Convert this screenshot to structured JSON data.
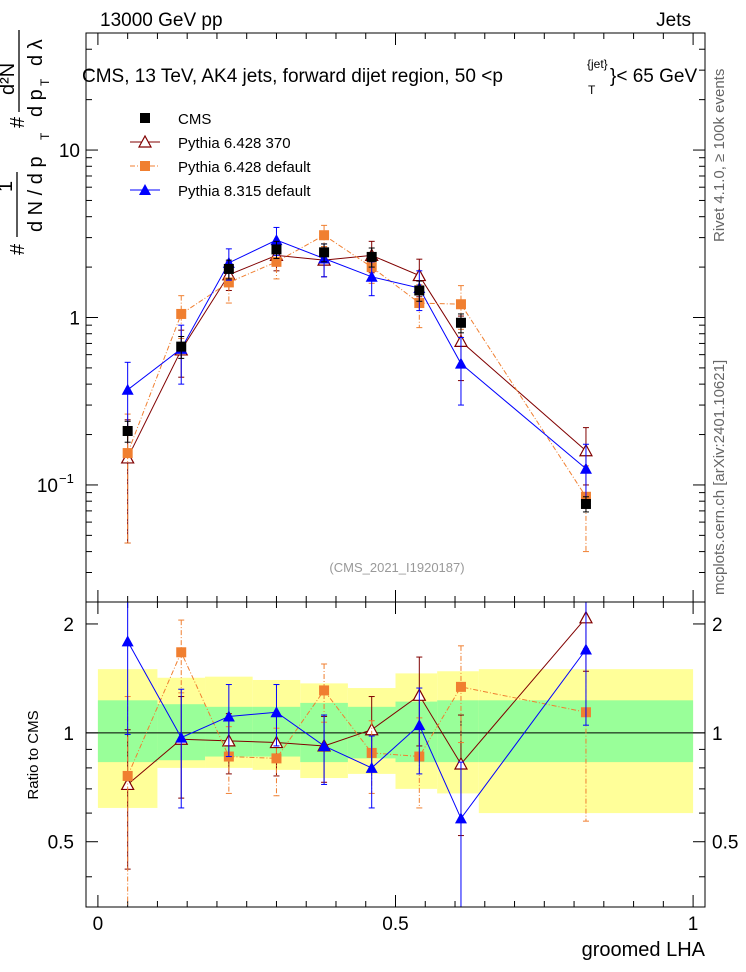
{
  "header": {
    "left_label": "13000 GeV pp",
    "right_label": "Jets"
  },
  "side_labels": {
    "rivet": "Rivet 4.1.0, ≥ 100k events",
    "source": "mcplots.cern.ch [arXiv:2401.10621]"
  },
  "chart_data": [
    {
      "type": "line",
      "panel": "main",
      "title": "CMS, 13 TeV, AK4 jets, forward dijet region, 50 <p",
      "title_sup": "{jet}",
      "title_sub": "T",
      "title_tail": "}< 65 GeV",
      "ylabel_parts": [
        "#",
        "1",
        "d N / d p",
        "T",
        "#",
        "d²N",
        "d p",
        "T",
        "d λ"
      ],
      "analysis_id": "(CMS_2021_I1920187)",
      "yscale": "log",
      "ylim": [
        0.02,
        50
      ],
      "xlim": [
        -0.02,
        1.02
      ],
      "y_ticks": [
        {
          "value": 0.1,
          "base": "10",
          "exp": "−1"
        },
        {
          "value": 1,
          "base": "1",
          "exp": ""
        },
        {
          "value": 10,
          "base": "10",
          "exp": ""
        }
      ],
      "x": [
        0.05,
        0.14,
        0.22,
        0.3,
        0.38,
        0.46,
        0.54,
        0.61,
        0.82
      ],
      "series": [
        {
          "name": "CMS",
          "color": "#000000",
          "marker": "square",
          "dash": "",
          "values": [
            0.21,
            0.67,
            1.95,
            2.55,
            2.45,
            2.3,
            1.45,
            0.93,
            0.077
          ],
          "err": [
            0.03,
            0.1,
            0.25,
            0.3,
            0.3,
            0.3,
            0.2,
            0.12,
            0.008
          ]
        },
        {
          "name": "Pythia 6.428 370",
          "color": "#800000",
          "marker": "triangle-open",
          "dash": "",
          "values": [
            0.145,
            0.64,
            1.8,
            2.35,
            2.2,
            2.35,
            1.78,
            0.72,
            0.16
          ],
          "err": [
            0.1,
            0.2,
            0.35,
            0.45,
            0.45,
            0.5,
            0.45,
            0.3,
            0.06
          ]
        },
        {
          "name": "Pythia 6.428 default",
          "color": "#f07f30",
          "marker": "square",
          "dash": "5,2,1,2",
          "values": [
            0.155,
            1.05,
            1.62,
            2.15,
            3.1,
            2.0,
            1.22,
            1.2,
            0.085
          ],
          "err": [
            0.11,
            0.3,
            0.4,
            0.45,
            0.45,
            0.4,
            0.35,
            0.35,
            0.045
          ]
        },
        {
          "name": "Pythia 8.315 default",
          "color": "#0000ff",
          "marker": "triangle",
          "dash": "",
          "values": [
            0.37,
            0.65,
            2.12,
            2.9,
            2.25,
            1.75,
            1.5,
            0.53,
            0.125
          ],
          "err": [
            0.17,
            0.25,
            0.45,
            0.55,
            0.5,
            0.4,
            0.4,
            0.23,
            0.05
          ]
        }
      ]
    },
    {
      "type": "line",
      "panel": "ratio",
      "ylabel": "Ratio to CMS",
      "xlabel": "groomed LHA",
      "ylim": [
        0.33,
        2.3
      ],
      "xlim": [
        -0.02,
        1.02
      ],
      "y_ticks": [
        0.5,
        1,
        2
      ],
      "x_ticks": [
        0,
        0.5,
        1
      ],
      "x": [
        0.05,
        0.14,
        0.22,
        0.3,
        0.38,
        0.46,
        0.54,
        0.61,
        0.82
      ],
      "bands": [
        {
          "x0": 0.0,
          "x1": 0.1,
          "inner": [
            0.83,
            1.23
          ],
          "outer": [
            0.62,
            1.5
          ]
        },
        {
          "x0": 0.1,
          "x1": 0.18,
          "inner": [
            0.84,
            1.2
          ],
          "outer": [
            0.8,
            1.42
          ]
        },
        {
          "x0": 0.18,
          "x1": 0.26,
          "inner": [
            0.86,
            1.18
          ],
          "outer": [
            0.8,
            1.43
          ]
        },
        {
          "x0": 0.26,
          "x1": 0.34,
          "inner": [
            0.86,
            1.18
          ],
          "outer": [
            0.79,
            1.4
          ]
        },
        {
          "x0": 0.34,
          "x1": 0.42,
          "inner": [
            0.83,
            1.21
          ],
          "outer": [
            0.75,
            1.37
          ]
        },
        {
          "x0": 0.42,
          "x1": 0.5,
          "inner": [
            0.85,
            1.18
          ],
          "outer": [
            0.77,
            1.33
          ]
        },
        {
          "x0": 0.5,
          "x1": 0.57,
          "inner": [
            0.83,
            1.22
          ],
          "outer": [
            0.7,
            1.46
          ]
        },
        {
          "x0": 0.57,
          "x1": 0.64,
          "inner": [
            0.83,
            1.23
          ],
          "outer": [
            0.68,
            1.48
          ]
        },
        {
          "x0": 0.64,
          "x1": 1.0,
          "inner": [
            0.83,
            1.23
          ],
          "outer": [
            0.6,
            1.5
          ]
        }
      ],
      "series": [
        {
          "name": "Pythia 6.428 370",
          "color": "#800000",
          "marker": "triangle-open",
          "dash": "",
          "values": [
            0.72,
            0.96,
            0.95,
            0.94,
            0.92,
            1.02,
            1.27,
            0.82,
            2.08
          ],
          "err": [
            0.3,
            0.3,
            0.18,
            0.18,
            0.19,
            0.24,
            0.35,
            0.3,
            0.6
          ]
        },
        {
          "name": "Pythia 6.428 default",
          "color": "#f07f30",
          "marker": "square",
          "dash": "5,2,1,2",
          "values": [
            0.76,
            1.67,
            0.86,
            0.85,
            1.31,
            0.88,
            0.86,
            1.34,
            1.14
          ],
          "err": [
            0.5,
            0.38,
            0.18,
            0.18,
            0.24,
            0.2,
            0.24,
            0.4,
            0.57
          ]
        },
        {
          "name": "Pythia 8.315 default",
          "color": "#0000ff",
          "marker": "triangle",
          "dash": "",
          "values": [
            1.79,
            0.97,
            1.11,
            1.14,
            0.92,
            0.8,
            1.05,
            0.58,
            1.7
          ],
          "err": [
            0.8,
            0.35,
            0.25,
            0.22,
            0.2,
            0.18,
            0.28,
            0.25,
            0.65
          ]
        }
      ]
    }
  ]
}
